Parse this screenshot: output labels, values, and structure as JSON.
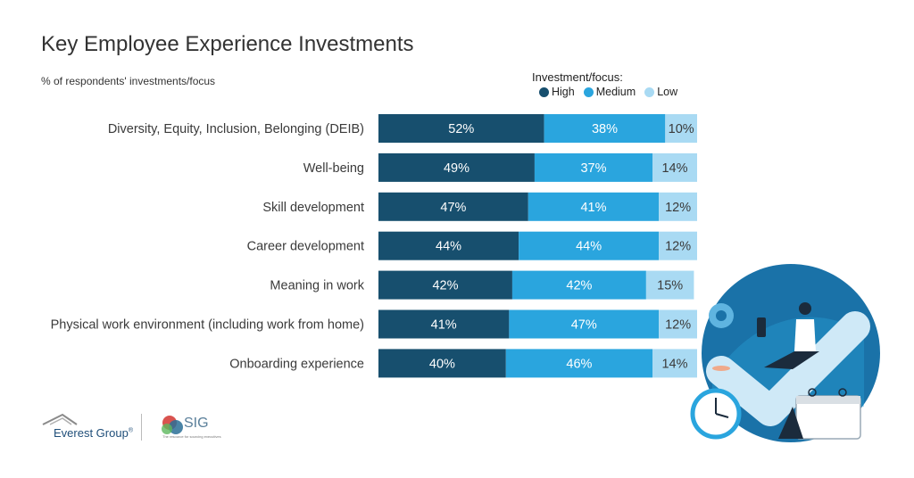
{
  "header": {
    "title": "Key Employee Experience Investments",
    "subtitle": "% of respondents' investments/focus"
  },
  "legend": {
    "title": "Investment/focus:",
    "items": [
      {
        "label": "High",
        "color": "#174f6e"
      },
      {
        "label": "Medium",
        "color": "#2aa5de"
      },
      {
        "label": "Low",
        "color": "#a9daf3"
      }
    ]
  },
  "chart_data": {
    "type": "bar",
    "orientation": "horizontal",
    "stacked": true,
    "title": "Key Employee Experience Investments",
    "subtitle": "% of respondents' investments/focus",
    "xlim": [
      0,
      100
    ],
    "legend_position": "top-right",
    "categories": [
      "Diversity, Equity, Inclusion, Belonging (DEIB)",
      "Well-being",
      "Skill development",
      "Career development",
      "Meaning in work",
      "Physical work environment (including work from home)",
      "Onboarding experience"
    ],
    "series": [
      {
        "name": "High",
        "color": "#174f6e",
        "values": [
          52,
          49,
          47,
          44,
          42,
          41,
          40
        ]
      },
      {
        "name": "Medium",
        "color": "#2aa5de",
        "values": [
          38,
          37,
          41,
          44,
          42,
          47,
          46
        ]
      },
      {
        "name": "Low",
        "color": "#a9daf3",
        "values": [
          10,
          14,
          12,
          12,
          15,
          12,
          14
        ]
      }
    ],
    "data_labels": true,
    "value_suffix": "%"
  },
  "logos": {
    "everest": "Everest Group",
    "everest_mark": "®",
    "sig": "SIG",
    "sig_tagline": "The resource for sourcing executives"
  }
}
